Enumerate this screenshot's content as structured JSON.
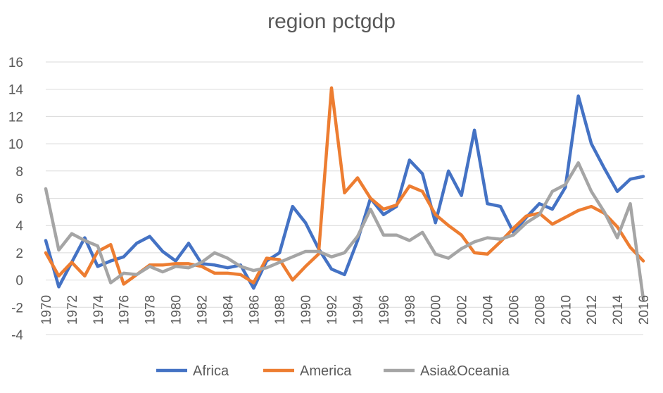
{
  "chart_data": {
    "type": "line",
    "title": "region pctgdp",
    "xlabel": "",
    "ylabel": "",
    "ylim": [
      -4,
      16
    ],
    "yticks": [
      -4,
      -2,
      0,
      2,
      4,
      6,
      8,
      10,
      12,
      14,
      16
    ],
    "grid": "horizontal",
    "legend": "bottom",
    "x": [
      1970,
      1971,
      1972,
      1973,
      1974,
      1975,
      1976,
      1977,
      1978,
      1979,
      1980,
      1981,
      1982,
      1983,
      1984,
      1985,
      1986,
      1987,
      1988,
      1989,
      1990,
      1991,
      1992,
      1993,
      1994,
      1995,
      1996,
      1997,
      1998,
      1999,
      2000,
      2001,
      2002,
      2003,
      2004,
      2005,
      2006,
      2007,
      2008,
      2009,
      2010,
      2011,
      2012,
      2013,
      2014,
      2015,
      2016
    ],
    "xticks": [
      1970,
      1972,
      1974,
      1976,
      1978,
      1980,
      1982,
      1984,
      1986,
      1988,
      1990,
      1992,
      1994,
      1996,
      1998,
      2000,
      2002,
      2004,
      2006,
      2008,
      2010,
      2012,
      2014,
      2016
    ],
    "series": [
      {
        "name": "Africa",
        "color": "#4472C4",
        "values": [
          2.9,
          -0.5,
          1.3,
          3.1,
          1.0,
          1.4,
          1.7,
          2.7,
          3.2,
          2.1,
          1.4,
          2.7,
          1.2,
          1.1,
          0.9,
          1.1,
          -0.6,
          1.4,
          2.0,
          5.4,
          4.2,
          2.3,
          0.8,
          0.4,
          2.9,
          6.0,
          4.8,
          5.4,
          8.8,
          7.8,
          4.2,
          8.0,
          6.2,
          11.0,
          5.6,
          5.4,
          3.5,
          4.6,
          5.6,
          5.2,
          6.8,
          13.5,
          10.0,
          8.2,
          6.5,
          7.4,
          7.6
        ]
      },
      {
        "name": "America",
        "color": "#ED7D31",
        "values": [
          2.0,
          0.3,
          1.3,
          0.3,
          2.1,
          2.6,
          -0.3,
          0.4,
          1.1,
          1.1,
          1.2,
          1.2,
          1.0,
          0.5,
          0.5,
          0.4,
          -0.2,
          1.6,
          1.5,
          0.0,
          1.0,
          1.9,
          14.1,
          6.4,
          7.5,
          6.0,
          5.2,
          5.5,
          6.9,
          6.5,
          4.8,
          4.0,
          3.3,
          2.0,
          1.9,
          2.8,
          3.8,
          4.7,
          4.9,
          4.1,
          4.6,
          5.1,
          5.4,
          4.9,
          3.9,
          2.4,
          1.4
        ]
      },
      {
        "name": "Asia&Oceania",
        "color": "#A5A5A5",
        "values": [
          6.7,
          2.2,
          3.4,
          2.9,
          2.5,
          -0.2,
          0.5,
          0.4,
          1.0,
          0.6,
          1.0,
          0.9,
          1.3,
          2.0,
          1.6,
          1.0,
          0.7,
          0.9,
          1.3,
          1.7,
          2.1,
          2.1,
          1.7,
          2.0,
          3.2,
          5.2,
          3.3,
          3.3,
          2.9,
          3.5,
          1.9,
          1.6,
          2.3,
          2.8,
          3.1,
          3.0,
          3.3,
          4.2,
          4.8,
          6.5,
          7.0,
          8.6,
          6.5,
          5.0,
          3.1,
          5.6,
          -1.4
        ]
      }
    ]
  }
}
